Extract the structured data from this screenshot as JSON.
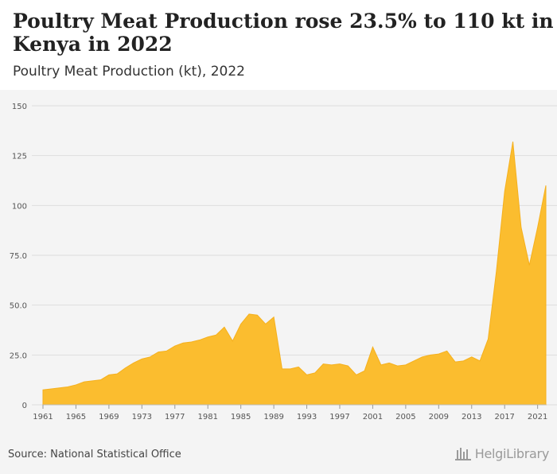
{
  "header": {
    "title": "Poultry Meat Production rose 23.5% to 110 kt in Kenya in 2022",
    "subtitle": "Poultry Meat Production (kt), 2022"
  },
  "footer": {
    "source": "Source: National Statistical Office",
    "logo_text": "HelgiLibrary"
  },
  "colors": {
    "area_fill": "#fbbd2f",
    "area_stroke": "#f5b01d",
    "grid": "#dddddd",
    "plot_bg": "#f4f4f4",
    "tick_text": "#555555"
  },
  "chart_data": {
    "type": "area",
    "title": "Poultry Meat Production rose 23.5% to 110 kt in Kenya in 2022",
    "subtitle": "Poultry Meat Production (kt), 2022",
    "xlabel": "",
    "ylabel": "",
    "ylim": [
      0,
      150
    ],
    "yticks": [
      "0",
      "25.0",
      "50.0",
      "75.0",
      "100",
      "125",
      "150"
    ],
    "ytick_values": [
      0,
      25,
      50,
      75,
      100,
      125,
      150
    ],
    "xticks": [
      "1961",
      "1965",
      "1969",
      "1973",
      "1977",
      "1981",
      "1985",
      "1989",
      "1993",
      "1997",
      "2001",
      "2005",
      "2009",
      "2013",
      "2017",
      "2021"
    ],
    "grid": true,
    "legend": "none",
    "series": [
      {
        "x": [
          1961,
          1962,
          1963,
          1964,
          1965,
          1966,
          1967,
          1968,
          1969,
          1970,
          1971,
          1972,
          1973,
          1974,
          1975,
          1976,
          1977,
          1978,
          1979,
          1980,
          1981,
          1982,
          1983,
          1984,
          1985,
          1986,
          1987,
          1988,
          1989,
          1990,
          1991,
          1992,
          1993,
          1994,
          1995,
          1996,
          1997,
          1998,
          1999,
          2000,
          2001,
          2002,
          2003,
          2004,
          2005,
          2006,
          2007,
          2008,
          2009,
          2010,
          2011,
          2012,
          2013,
          2014,
          2015,
          2016,
          2017,
          2018,
          2019,
          2020,
          2021,
          2022
        ],
        "values": [
          7.5,
          8,
          8.5,
          9,
          10,
          11.5,
          12,
          12.5,
          15,
          15.5,
          18.5,
          21,
          23,
          24,
          26.5,
          27,
          29.5,
          31,
          31.5,
          32.5,
          34,
          35,
          39,
          32,
          40.5,
          45.5,
          45,
          40.5,
          44,
          18,
          18,
          19,
          15,
          16,
          20.5,
          20,
          20.5,
          19.5,
          15,
          17,
          29,
          20,
          21,
          19.5,
          20,
          22,
          24,
          25,
          25.5,
          27,
          21.5,
          22,
          24,
          22,
          33,
          67,
          107,
          132,
          89,
          70,
          89,
          110
        ]
      }
    ]
  }
}
